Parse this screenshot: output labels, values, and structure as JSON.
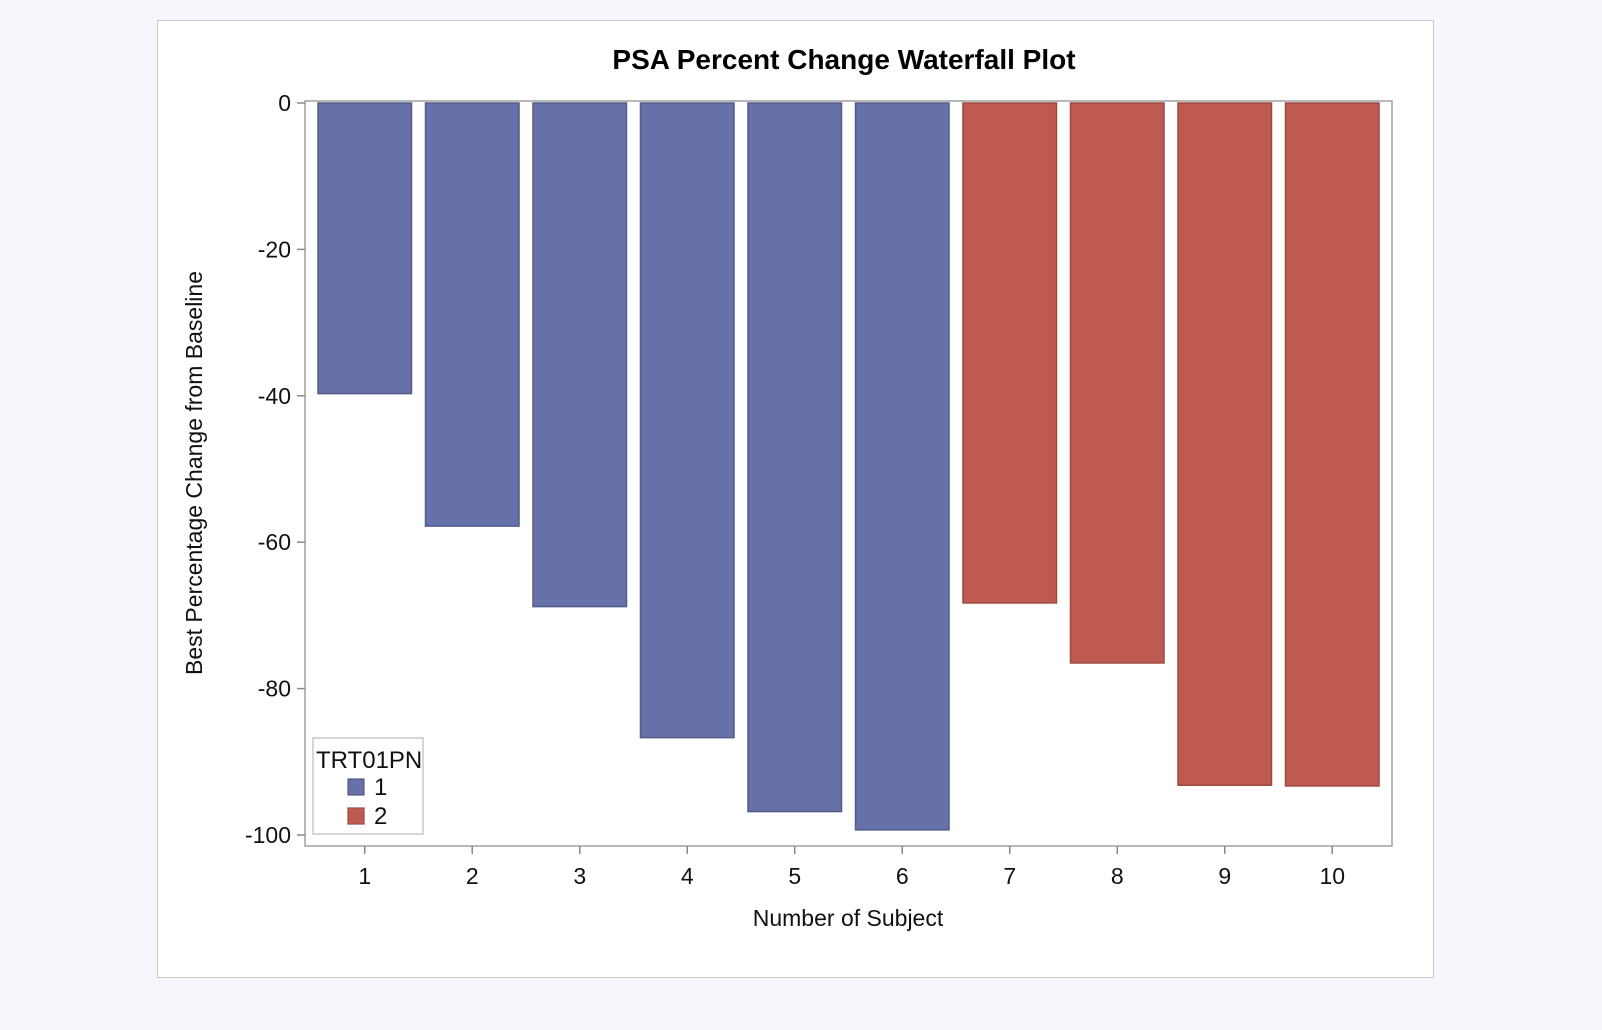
{
  "chart_data": {
    "type": "bar",
    "title": "PSA Percent Change Waterfall Plot",
    "xlabel": "Number of Subject",
    "ylabel": "Best Percentage Change from Baseline",
    "ylim": [
      -101.5,
      0
    ],
    "yticks": [
      0,
      -20,
      -40,
      -60,
      -80,
      -100
    ],
    "categories": [
      "1",
      "2",
      "3",
      "4",
      "5",
      "6",
      "7",
      "8",
      "9",
      "10"
    ],
    "values": [
      -39.7,
      -57.8,
      -68.8,
      -86.7,
      -96.8,
      -99.3,
      -68.3,
      -76.5,
      -93.2,
      -93.3
    ],
    "groups": [
      "1",
      "1",
      "1",
      "1",
      "1",
      "1",
      "2",
      "2",
      "2",
      "2"
    ],
    "grid": false,
    "legend": {
      "title": "TRT01PN",
      "position": "bottom-left",
      "entries": [
        {
          "label": "1",
          "color": "#6571a8"
        },
        {
          "label": "2",
          "color": "#bf5a50"
        }
      ]
    }
  }
}
